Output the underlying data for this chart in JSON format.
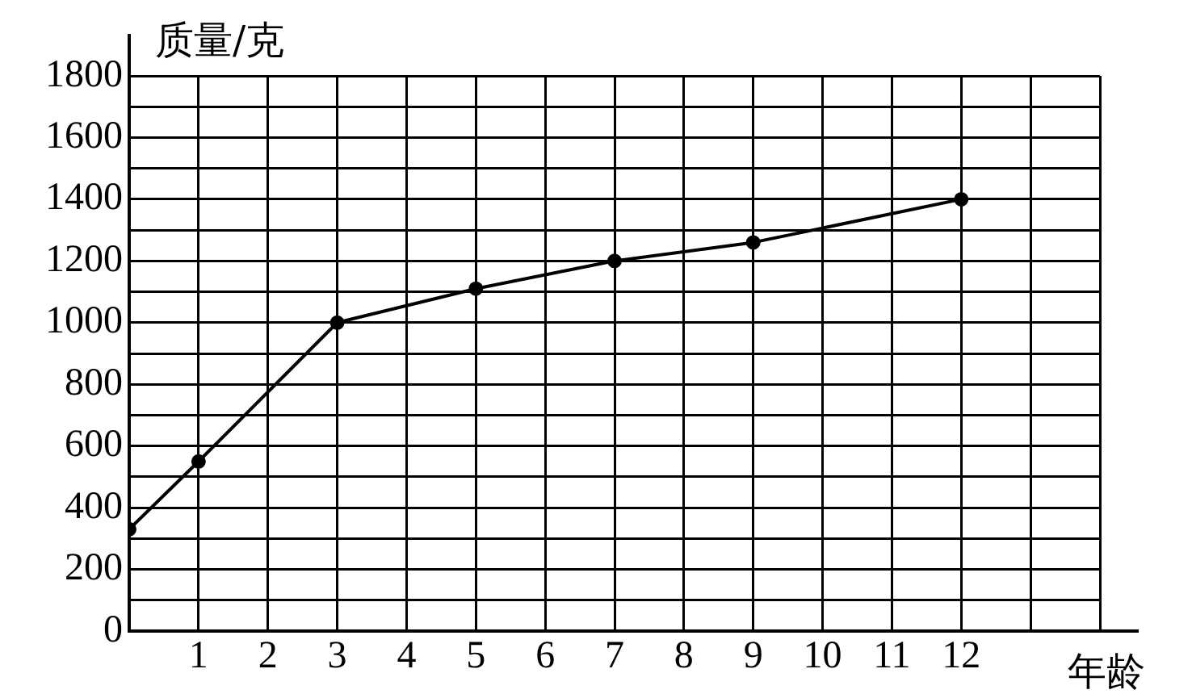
{
  "chart_data": {
    "type": "line",
    "xlabel": "年龄",
    "ylabel": "质量/克",
    "x": [
      0,
      1,
      3,
      5,
      7,
      9,
      12
    ],
    "series": [
      {
        "color": "#000000",
        "values": [
          330,
          550,
          1000,
          1110,
          1200,
          1260,
          1400
        ]
      }
    ],
    "xlim": [
      0,
      14
    ],
    "xticks": [
      {
        "value": 0,
        "label": null
      },
      1,
      2,
      3,
      4,
      5,
      6,
      7,
      8,
      9,
      10,
      11,
      12,
      {
        "value": 13,
        "label": null
      },
      {
        "value": 14,
        "label": null
      }
    ],
    "ylim": [
      0,
      1800
    ],
    "yticks": [
      0,
      {
        "value": 100,
        "label": null
      },
      200,
      {
        "value": 300,
        "label": null
      },
      400,
      {
        "value": 500,
        "label": null
      },
      600,
      {
        "value": 700,
        "label": null
      },
      800,
      {
        "value": 900,
        "label": null
      },
      1000,
      {
        "value": 1100,
        "label": null
      },
      1200,
      {
        "value": 1300,
        "label": null
      },
      1400,
      {
        "value": 1500,
        "label": null
      },
      1600,
      {
        "value": 1700,
        "label": null
      },
      1800
    ],
    "grid": true,
    "marker": "circle",
    "line_style": "solid"
  }
}
